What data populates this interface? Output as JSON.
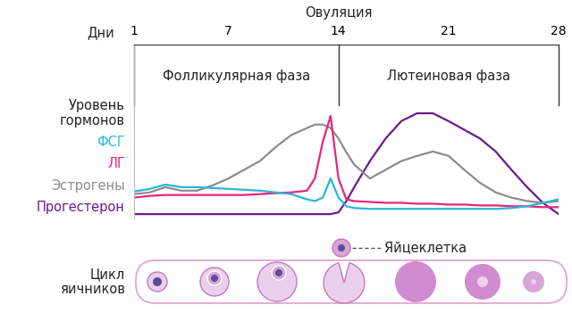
{
  "chart_data": {
    "type": "line",
    "xlabel": "Дни",
    "ylabel": "Уровень\nгормонов",
    "ovulation": {
      "label": "Овуляция",
      "day": 14
    },
    "phases": [
      {
        "name": "Фолликулярная фаза",
        "start": 1,
        "end": 14
      },
      {
        "name": "Лютеиновая фаза",
        "start": 14,
        "end": 28
      }
    ],
    "ovarian_cycle": {
      "label": "Цикл\nяичников",
      "egg_label": "Яйцеклетка"
    },
    "x": [
      1,
      2,
      3,
      4,
      5,
      6,
      7,
      8,
      9,
      10,
      11,
      12,
      12.5,
      13,
      13.5,
      14,
      14.5,
      15,
      16,
      17,
      18,
      19,
      20,
      21,
      22,
      23,
      24,
      25,
      26,
      27,
      28
    ],
    "series": [
      {
        "name": "ФСГ",
        "color": "#29b6d8",
        "values": [
          15.5,
          17,
          19.5,
          18,
          18,
          17.5,
          17,
          16.5,
          16,
          15,
          14,
          11,
          10,
          12,
          23,
          12,
          7,
          6,
          5.5,
          5.5,
          5.5,
          5.5,
          5.5,
          5.5,
          5.5,
          5.5,
          5.5,
          6,
          7,
          9,
          11
        ]
      },
      {
        "name": "ЛГ",
        "color": "#e6267a",
        "values": [
          12,
          13,
          13.5,
          13.5,
          13.5,
          13.5,
          13.5,
          13.5,
          14,
          14.5,
          15,
          16,
          23,
          44,
          59,
          23,
          11,
          10,
          9.5,
          9,
          9,
          8.5,
          8.5,
          8,
          8,
          7.5,
          7.5,
          7,
          7,
          6.5,
          6.5
        ]
      },
      {
        "name": "Эстрогены",
        "color": "#8c8c8c",
        "values": [
          14,
          15,
          18,
          16,
          16,
          19,
          23,
          28,
          33,
          41,
          48,
          52,
          54,
          54,
          52,
          46,
          38,
          31,
          23,
          28,
          33,
          36,
          38.5,
          36,
          28,
          20.5,
          15,
          12,
          10,
          9,
          10
        ]
      },
      {
        "name": "Прогестерон",
        "color": "#6a1b8a",
        "values": [
          2.5,
          2.5,
          2.5,
          2.5,
          2.5,
          2.5,
          2.5,
          2.5,
          2.5,
          2.5,
          2.5,
          2.5,
          2.5,
          2.5,
          2.5,
          3.5,
          10,
          18,
          33,
          46,
          56,
          60.5,
          60.5,
          56,
          51,
          46,
          38.5,
          28,
          18,
          9,
          2.5
        ]
      }
    ],
    "xlim": [
      1,
      28
    ],
    "xticks": [
      1,
      7,
      14,
      21,
      28
    ],
    "ylim": [
      0,
      100
    ],
    "yticks": [],
    "tick_labels": "x",
    "grid": false
  }
}
